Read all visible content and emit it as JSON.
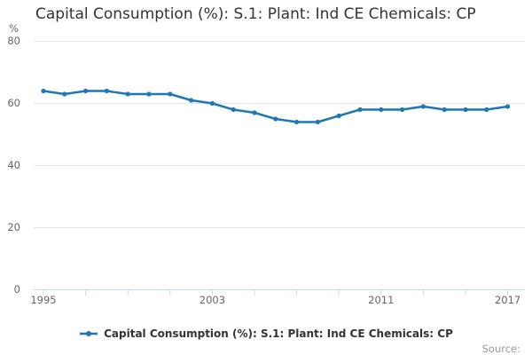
{
  "page": {
    "title": "Capital Consumption (%): S.1: Plant: Ind CE Chemicals: CP",
    "source_label": "Source:"
  },
  "legend": {
    "label": "Capital Consumption (%): S.1: Plant: Ind CE Chemicals: CP"
  },
  "chart_data": {
    "type": "line",
    "title": "Capital Consumption (%): S.1: Plant: Ind CE Chemicals: CP",
    "series_name": "Capital Consumption (%): S.1: Plant: Ind CE Chemicals: CP",
    "y_unit": "%",
    "ylim": [
      0,
      80
    ],
    "y_ticks": [
      0,
      20,
      40,
      60,
      80
    ],
    "x_tick_years": [
      1995,
      1997,
      1999,
      2001,
      2003,
      2005,
      2007,
      2009,
      2011,
      2013,
      2015,
      2017
    ],
    "x_label_years": [
      1995,
      2003,
      2011,
      2017
    ],
    "grid": "horizontal-only",
    "legend_position": "bottom-center",
    "x": [
      1995,
      1996,
      1997,
      1998,
      1999,
      2000,
      2001,
      2002,
      2003,
      2004,
      2005,
      2006,
      2007,
      2008,
      2009,
      2010,
      2011,
      2012,
      2013,
      2014,
      2015,
      2016,
      2017
    ],
    "values": [
      64,
      63,
      64,
      64,
      63,
      63,
      63,
      61,
      60,
      58,
      57,
      55,
      54,
      54,
      56,
      58,
      58,
      58,
      59,
      58,
      58,
      58,
      59
    ],
    "colors": {
      "line": "#1f77b4",
      "grid": "#e6e6e6",
      "axis": "#ccd6eb",
      "tick_label": "#666666",
      "title": "#333333",
      "legend_text": "#333333",
      "source_text": "#999999"
    }
  }
}
